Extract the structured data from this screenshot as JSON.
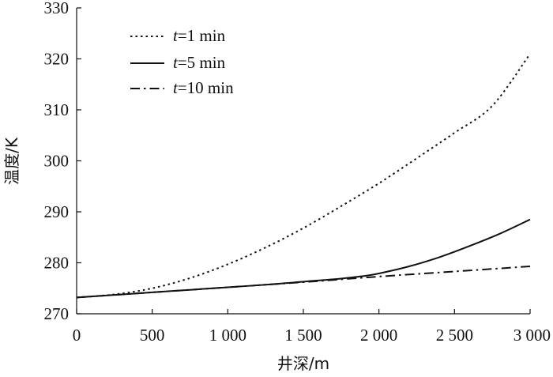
{
  "chart_data": {
    "type": "line",
    "title": "",
    "xlabel": "井深/m",
    "ylabel": "温度/K",
    "xlim": [
      0,
      3000
    ],
    "ylim": [
      270,
      330
    ],
    "x_ticks": [
      0,
      500,
      1000,
      1500,
      2000,
      2500,
      3000
    ],
    "x_tick_labels": [
      "0",
      "500",
      "1 000",
      "1 500",
      "2 000",
      "2 500",
      "3 000"
    ],
    "y_ticks": [
      270,
      280,
      290,
      300,
      310,
      320,
      330
    ],
    "y_tick_labels": [
      "270",
      "280",
      "290",
      "300",
      "310",
      "320",
      "330"
    ],
    "legend_position": "top-left",
    "grid": false,
    "series": [
      {
        "name": "t=1 min",
        "name_italic": "t",
        "name_rest": "=1 min",
        "style": "dotted",
        "x": [
          0,
          250,
          500,
          750,
          1000,
          1250,
          1500,
          1750,
          2000,
          2250,
          2500,
          2750,
          3000
        ],
        "y": [
          273.2,
          273.8,
          275.0,
          277.0,
          279.7,
          283.0,
          286.8,
          291.1,
          295.6,
          300.5,
          305.5,
          310.8,
          321.0
        ]
      },
      {
        "name": "t=5 min",
        "name_italic": "t",
        "name_rest": "=5 min",
        "style": "solid",
        "x": [
          0,
          250,
          500,
          750,
          1000,
          1250,
          1500,
          1750,
          1900,
          2000,
          2200,
          2400,
          2600,
          2800,
          3000
        ],
        "y": [
          273.2,
          273.7,
          274.2,
          274.7,
          275.2,
          275.7,
          276.3,
          276.9,
          277.4,
          277.9,
          279.3,
          281.1,
          283.3,
          285.7,
          288.5
        ]
      },
      {
        "name": "t=10 min",
        "name_italic": "t",
        "name_rest": "=10 min",
        "style": "dashdot",
        "x": [
          0,
          500,
          1000,
          1500,
          2000,
          2500,
          3000
        ],
        "y": [
          273.2,
          274.2,
          275.2,
          276.2,
          277.3,
          278.3,
          279.3
        ]
      }
    ]
  }
}
